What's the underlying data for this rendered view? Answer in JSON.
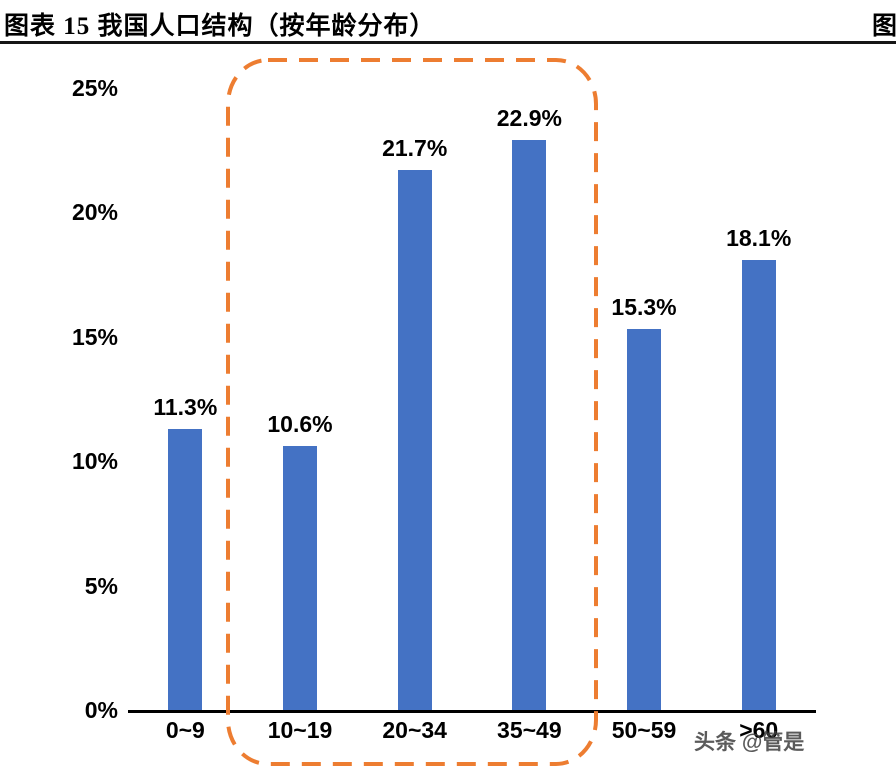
{
  "page": {
    "title": "图表 15  我国人口结构（按年龄分布）",
    "adjacent_title_fragment": "图",
    "watermark": "头条 @管是"
  },
  "chart_data": {
    "type": "bar",
    "title": "我国人口结构（按年龄分布）",
    "figure_label": "图表 15",
    "categories": [
      "0~9",
      "10~19",
      "20~34",
      "35~49",
      "50~59",
      ">60"
    ],
    "values": [
      11.3,
      10.6,
      21.7,
      22.9,
      15.3,
      18.1
    ],
    "value_labels": [
      "11.3%",
      "10.6%",
      "21.7%",
      "22.9%",
      "15.3%",
      "18.1%"
    ],
    "ylim": [
      0,
      25
    ],
    "ytick_values": [
      0,
      5,
      10,
      15,
      20,
      25
    ],
    "ytick_labels": [
      "0%",
      "5%",
      "10%",
      "15%",
      "20%",
      "25%"
    ],
    "grid": false,
    "legend": null,
    "bar_color": "#4472C4",
    "axis_color": "#000000",
    "highlight": {
      "categories": [
        "10~19",
        "20~34",
        "35~49"
      ],
      "color": "#ED7D31",
      "style": "dashed-rounded-rect"
    }
  }
}
